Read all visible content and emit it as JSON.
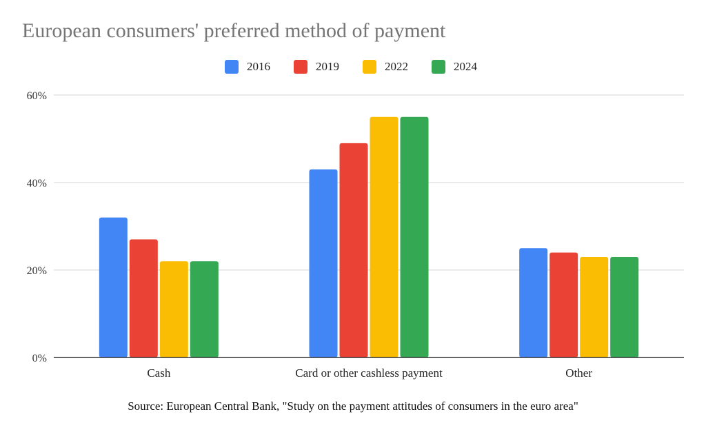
{
  "chart_data": {
    "type": "bar",
    "title": "European consumers' preferred method of payment",
    "categories": [
      "Cash",
      "Card or other cashless payment",
      "Other"
    ],
    "series": [
      {
        "name": "2016",
        "color": "#4285F4",
        "values": [
          32,
          43,
          25
        ]
      },
      {
        "name": "2019",
        "color": "#EA4335",
        "values": [
          27,
          49,
          24
        ]
      },
      {
        "name": "2022",
        "color": "#FBBC04",
        "values": [
          22,
          55,
          23
        ]
      },
      {
        "name": "2024",
        "color": "#34A853",
        "values": [
          22,
          55,
          23
        ]
      }
    ],
    "ylim": [
      0,
      60
    ],
    "yticks": [
      0,
      20,
      40,
      60
    ],
    "ytick_labels": [
      "0%",
      "20%",
      "40%",
      "60%"
    ],
    "xlabel": "",
    "ylabel": "",
    "grid": true,
    "legend_position": "top"
  },
  "source": "Source: European Central Bank, \"Study on the payment attitudes of consumers in the euro area\""
}
